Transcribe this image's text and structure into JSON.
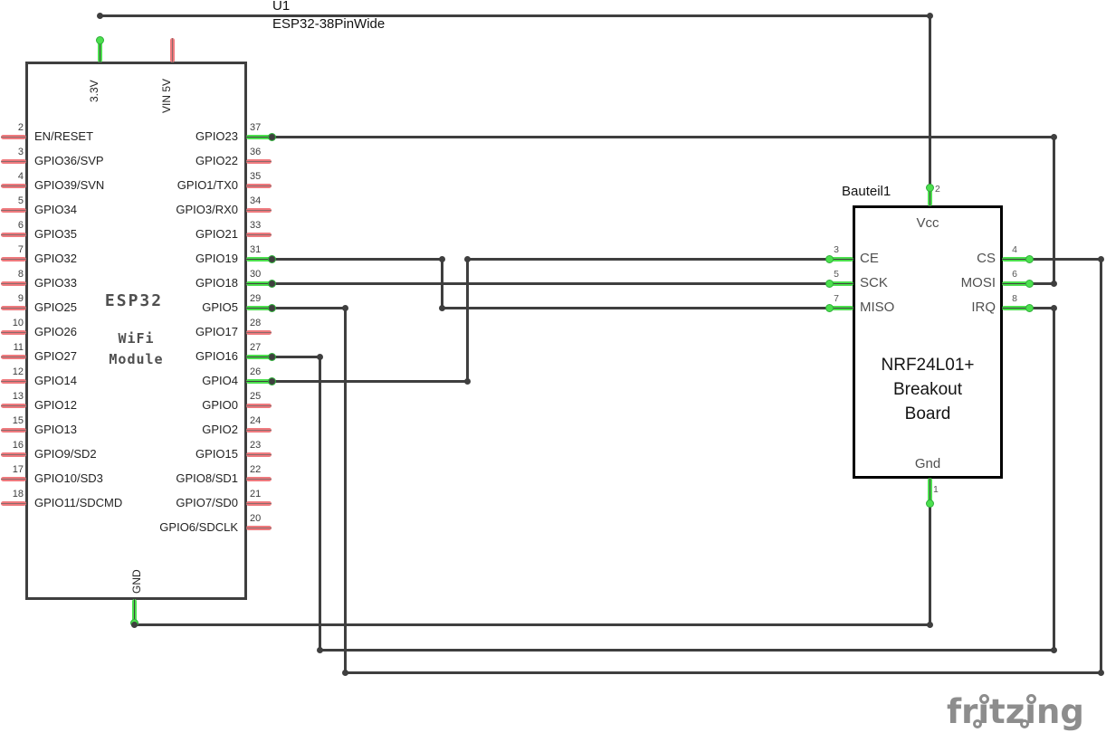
{
  "colors": {
    "wire": "#3f3f3f",
    "pin_connected": "#4ce04e",
    "pin_unconnected": "#ef7a7e",
    "esp_border": "#3f3f3f",
    "nrf_border": "#000000",
    "watermark": "#8d8d8d"
  },
  "title": {
    "ref": "U1",
    "part": "ESP32-38PinWide"
  },
  "esp32": {
    "center": {
      "line1": "ESP32",
      "line2": "WiFi",
      "line3": "Module"
    },
    "top_pins": [
      {
        "label": "3.3V",
        "connected": true
      },
      {
        "label": "VIN 5V",
        "connected": false
      }
    ],
    "bottom_pins": [
      {
        "label": "GND",
        "connected": true
      }
    ],
    "left_pins": [
      {
        "num": "2",
        "label": "EN/RESET",
        "connected": false
      },
      {
        "num": "3",
        "label": "GPIO36/SVP",
        "connected": false
      },
      {
        "num": "4",
        "label": "GPIO39/SVN",
        "connected": false
      },
      {
        "num": "5",
        "label": "GPIO34",
        "connected": false
      },
      {
        "num": "6",
        "label": "GPIO35",
        "connected": false
      },
      {
        "num": "7",
        "label": "GPIO32",
        "connected": false
      },
      {
        "num": "8",
        "label": "GPIO33",
        "connected": false
      },
      {
        "num": "9",
        "label": "GPIO25",
        "connected": false
      },
      {
        "num": "10",
        "label": "GPIO26",
        "connected": false
      },
      {
        "num": "11",
        "label": "GPIO27",
        "connected": false
      },
      {
        "num": "12",
        "label": "GPIO14",
        "connected": false
      },
      {
        "num": "13",
        "label": "GPIO12",
        "connected": false
      },
      {
        "num": "15",
        "label": "GPIO13",
        "connected": false
      },
      {
        "num": "16",
        "label": "GPIO9/SD2",
        "connected": false
      },
      {
        "num": "17",
        "label": "GPIO10/SD3",
        "connected": false
      },
      {
        "num": "18",
        "label": "GPIO11/SDCMD",
        "connected": false
      }
    ],
    "right_pins": [
      {
        "num": "37",
        "label": "GPIO23",
        "connected": true
      },
      {
        "num": "36",
        "label": "GPIO22",
        "connected": false
      },
      {
        "num": "35",
        "label": "GPIO1/TX0",
        "connected": false
      },
      {
        "num": "34",
        "label": "GPIO3/RX0",
        "connected": false
      },
      {
        "num": "33",
        "label": "GPIO21",
        "connected": false
      },
      {
        "num": "31",
        "label": "GPIO19",
        "connected": true
      },
      {
        "num": "30",
        "label": "GPIO18",
        "connected": true
      },
      {
        "num": "29",
        "label": "GPIO5",
        "connected": true
      },
      {
        "num": "28",
        "label": "GPIO17",
        "connected": false
      },
      {
        "num": "27",
        "label": "GPIO16",
        "connected": true
      },
      {
        "num": "26",
        "label": "GPIO4",
        "connected": true
      },
      {
        "num": "25",
        "label": "GPIO0",
        "connected": false
      },
      {
        "num": "24",
        "label": "GPIO2",
        "connected": false
      },
      {
        "num": "23",
        "label": "GPIO15",
        "connected": false
      },
      {
        "num": "22",
        "label": "GPIO8/SD1",
        "connected": false
      },
      {
        "num": "21",
        "label": "GPIO7/SD0",
        "connected": false
      },
      {
        "num": "20",
        "label": "GPIO6/SDCLK",
        "connected": false
      }
    ]
  },
  "nrf": {
    "ref": "Bauteil1",
    "center": [
      "NRF24L01+",
      "Breakout",
      "Board"
    ],
    "top_pins": [
      {
        "num": "2",
        "label": "Vcc",
        "connected": true
      }
    ],
    "bottom_pins": [
      {
        "num": "1",
        "label": "Gnd",
        "connected": true
      }
    ],
    "left_pins": [
      {
        "num": "3",
        "label": "CE",
        "connected": true
      },
      {
        "num": "5",
        "label": "SCK",
        "connected": true
      },
      {
        "num": "7",
        "label": "MISO",
        "connected": true
      }
    ],
    "right_pins": [
      {
        "num": "4",
        "label": "CS",
        "connected": true
      },
      {
        "num": "6",
        "label": "MOSI",
        "connected": true
      },
      {
        "num": "8",
        "label": "IRQ",
        "connected": true
      }
    ]
  },
  "connections": [
    {
      "name": "3v3-vcc",
      "from": "ESP32 3.3V",
      "to": "NRF24 Vcc"
    },
    {
      "name": "gpio23-mosi",
      "from": "ESP32 GPIO23",
      "to": "NRF24 MOSI"
    },
    {
      "name": "gpio19-miso",
      "from": "ESP32 GPIO19",
      "to": "NRF24 MISO"
    },
    {
      "name": "gpio18-sck",
      "from": "ESP32 GPIO18",
      "to": "NRF24 SCK"
    },
    {
      "name": "gpio4-ce",
      "from": "ESP32 GPIO4",
      "to": "NRF24 CE"
    },
    {
      "name": "gpio5-cs",
      "from": "ESP32 GPIO5",
      "to": "NRF24 CS"
    },
    {
      "name": "gpio16-irq",
      "from": "ESP32 GPIO16",
      "to": "NRF24 IRQ"
    },
    {
      "name": "gnd-gnd",
      "from": "ESP32 GND",
      "to": "NRF24 Gnd"
    }
  ],
  "watermark": {
    "text": "fritzing"
  }
}
